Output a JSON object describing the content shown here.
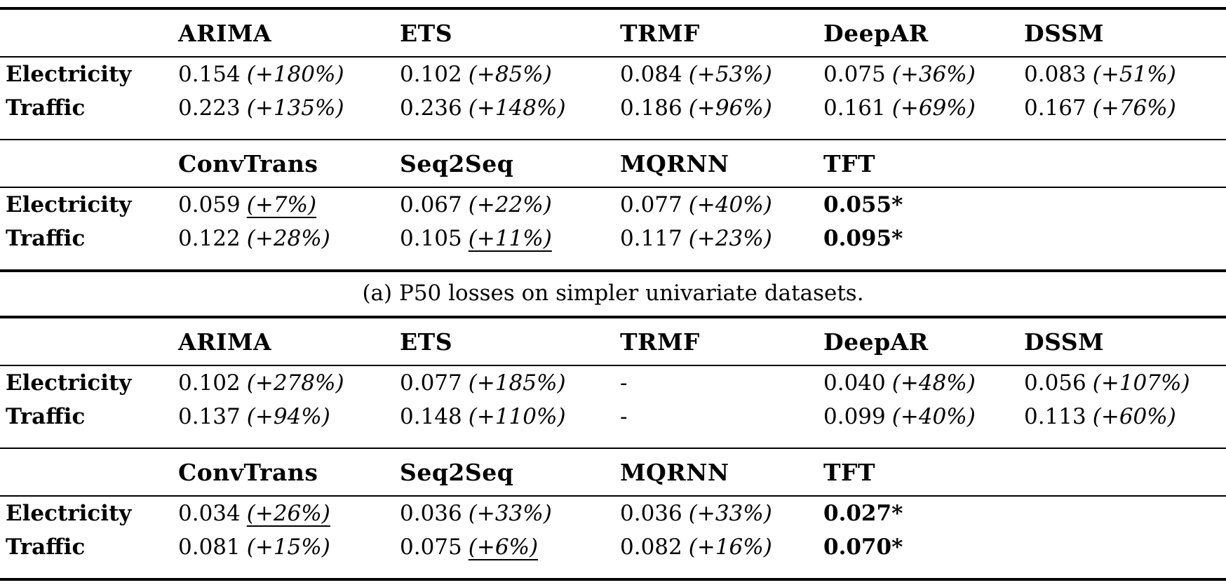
{
  "figure": {
    "caption_a": "(a) P50 losses on simpler univariate datasets."
  },
  "tables": [
    {
      "caption": "(a) P50 losses on simpler univariate datasets.",
      "blocks": [
        {
          "headers": [
            "",
            "ARIMA",
            "ETS",
            "TRMF",
            "DeepAR",
            "DSSM"
          ],
          "rows": [
            {
              "label": "Electricity",
              "cells": [
                {
                  "t": "0.154",
                  "p": "(+180%)"
                },
                {
                  "t": "0.102",
                  "p": "(+85%)"
                },
                {
                  "t": "0.084",
                  "p": "(+53%)"
                },
                {
                  "t": "0.075",
                  "p": "(+36%)"
                },
                {
                  "t": "0.083",
                  "p": "(+51%)"
                }
              ]
            },
            {
              "label": "Traffic",
              "cells": [
                {
                  "t": "0.223",
                  "p": "(+135%)"
                },
                {
                  "t": "0.236",
                  "p": "(+148%)"
                },
                {
                  "t": "0.186",
                  "p": "(+96%)"
                },
                {
                  "t": "0.161",
                  "p": "(+69%)"
                },
                {
                  "t": "0.167",
                  "p": "(+76%)"
                }
              ]
            }
          ]
        },
        {
          "headers": [
            "",
            "ConvTrans",
            "Seq2Seq",
            "MQRNN",
            "TFT",
            ""
          ],
          "rows": [
            {
              "label": "Electricity",
              "cells": [
                {
                  "t": "0.059",
                  "p": "(+7%)",
                  "u": true
                },
                {
                  "t": "0.067",
                  "p": "(+22%)"
                },
                {
                  "t": "0.077",
                  "p": "(+40%)"
                },
                {
                  "t": "0.055*",
                  "b": true
                },
                null
              ]
            },
            {
              "label": "Traffic",
              "cells": [
                {
                  "t": "0.122",
                  "p": "(+28%)"
                },
                {
                  "t": "0.105",
                  "p": "(+11%)",
                  "u": true
                },
                {
                  "t": "0.117",
                  "p": "(+23%)"
                },
                {
                  "t": "0.095*",
                  "b": true
                },
                null
              ]
            }
          ]
        }
      ]
    },
    {
      "blocks": [
        {
          "headers": [
            "",
            "ARIMA",
            "ETS",
            "TRMF",
            "DeepAR",
            "DSSM"
          ],
          "rows": [
            {
              "label": "Electricity",
              "cells": [
                {
                  "t": "0.102",
                  "p": "(+278%)"
                },
                {
                  "t": "0.077",
                  "p": "(+185%)"
                },
                {
                  "t": "-"
                },
                {
                  "t": "0.040",
                  "p": "(+48%)"
                },
                {
                  "t": "0.056",
                  "p": "(+107%)"
                }
              ]
            },
            {
              "label": "Traffic",
              "cells": [
                {
                  "t": "0.137",
                  "p": "(+94%)"
                },
                {
                  "t": "0.148",
                  "p": "(+110%)"
                },
                {
                  "t": "-"
                },
                {
                  "t": "0.099",
                  "p": "(+40%)"
                },
                {
                  "t": "0.113",
                  "p": "(+60%)"
                }
              ]
            }
          ]
        },
        {
          "headers": [
            "",
            "ConvTrans",
            "Seq2Seq",
            "MQRNN",
            "TFT",
            ""
          ],
          "rows": [
            {
              "label": "Electricity",
              "cells": [
                {
                  "t": "0.034",
                  "p": "(+26%)",
                  "u": true
                },
                {
                  "t": "0.036",
                  "p": "(+33%)"
                },
                {
                  "t": "0.036",
                  "p": "(+33%)"
                },
                {
                  "t": "0.027*",
                  "b": true
                },
                null
              ]
            },
            {
              "label": "Traffic",
              "cells": [
                {
                  "t": "0.081",
                  "p": "(+15%)"
                },
                {
                  "t": "0.075",
                  "p": "(+6%)",
                  "u": true
                },
                {
                  "t": "0.082",
                  "p": "(+16%)"
                },
                {
                  "t": "0.070*",
                  "b": true
                },
                null
              ]
            }
          ]
        }
      ]
    }
  ]
}
